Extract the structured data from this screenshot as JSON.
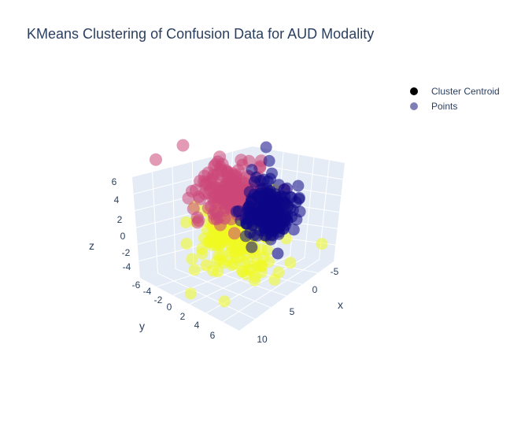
{
  "chart_data": {
    "type": "scatter",
    "title": "KMeans Clustering of Confusion Data for AUD Modality",
    "axes": {
      "x": {
        "label": "x",
        "ticks": [
          "-5",
          "0",
          "5",
          "10"
        ]
      },
      "y": {
        "label": "y",
        "ticks": [
          "-6",
          "-4",
          "-2",
          "0",
          "2",
          "4",
          "6"
        ]
      },
      "z": {
        "label": "z",
        "ticks": [
          "-4",
          "-2",
          "0",
          "2",
          "4",
          "6"
        ]
      }
    },
    "legend": {
      "placement": "top-right",
      "items": [
        {
          "name": "Cluster Centroid",
          "color": "#000000"
        },
        {
          "name": "Points",
          "color": "#7f7fb5"
        }
      ]
    },
    "clusters": [
      {
        "color": "#0d0887",
        "approx_center": {
          "x": -3,
          "y": 2,
          "z": 3
        }
      },
      {
        "color": "#cc4778",
        "approx_center": {
          "x": 2,
          "y": -3,
          "z": 4
        }
      },
      {
        "color": "#f0f921",
        "approx_center": {
          "x": 4,
          "y": -2,
          "z": -1
        }
      }
    ],
    "grid": true
  }
}
